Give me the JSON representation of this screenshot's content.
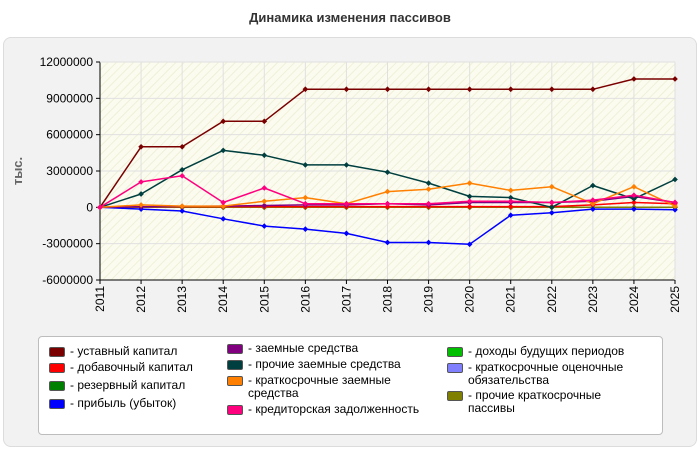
{
  "title": "Динамика изменения пассивов",
  "chart_data": {
    "type": "line",
    "ylabel": "тыс.",
    "ylim": [
      -6000000,
      12000000
    ],
    "yticks": [
      12000000,
      9000000,
      6000000,
      3000000,
      0,
      -3000000,
      -6000000
    ],
    "ytick_labels": [
      "12000000",
      "9000000",
      "6000000",
      "3000000",
      "0",
      "-3000000",
      "-6000000"
    ],
    "x": [
      "2011",
      "2012",
      "2013",
      "2014",
      "2015",
      "2016",
      "2017",
      "2018",
      "2019",
      "2020",
      "2021",
      "2022",
      "2023",
      "2024",
      "2025"
    ],
    "grid": true,
    "legend_position": "bottom",
    "series": [
      {
        "name": "уставный капитал",
        "color": "#7a0000",
        "values": [
          0,
          5000000,
          5000000,
          7100000,
          7100000,
          9750000,
          9750000,
          9750000,
          9750000,
          9750000,
          9750000,
          9750000,
          9750000,
          10600000,
          10600000
        ]
      },
      {
        "name": "добавочный капитал",
        "color": "#ff0000",
        "values": [
          0,
          50000,
          60000,
          60000,
          60000,
          60000,
          60000,
          60000,
          60000,
          60000,
          60000,
          60000,
          200000,
          400000,
          300000
        ]
      },
      {
        "name": "резервный капитал",
        "color": "#008000",
        "values": [
          0,
          0,
          0,
          0,
          0,
          0,
          0,
          0,
          0,
          0,
          0,
          0,
          0,
          0,
          0
        ]
      },
      {
        "name": "прибыль (убыток)",
        "color": "#0000ff",
        "values": [
          0,
          -150000,
          -300000,
          -950000,
          -1550000,
          -1800000,
          -2150000,
          -2900000,
          -2900000,
          -3050000,
          -650000,
          -450000,
          -150000,
          -150000,
          -200000
        ]
      },
      {
        "name": "заемные средства",
        "color": "#800080",
        "values": [
          0,
          50000,
          80000,
          100000,
          150000,
          200000,
          200000,
          300000,
          200000,
          400000,
          400000,
          400000,
          500000,
          900000,
          400000
        ]
      },
      {
        "name": "прочие заемные средства",
        "color": "#003f3f",
        "values": [
          0,
          1100000,
          3100000,
          4700000,
          4300000,
          3500000,
          3500000,
          2900000,
          2000000,
          900000,
          800000,
          0,
          1800000,
          700000,
          2300000
        ]
      },
      {
        "name": "краткосрочные заемные средства",
        "color": "#ff8000",
        "values": [
          0,
          200000,
          100000,
          100000,
          500000,
          800000,
          300000,
          1300000,
          1500000,
          2000000,
          1400000,
          1700000,
          300000,
          1700000,
          100000
        ]
      },
      {
        "name": "кредиторская задолженность",
        "color": "#ff007f",
        "values": [
          0,
          2100000,
          2600000,
          400000,
          1600000,
          300000,
          300000,
          300000,
          300000,
          500000,
          500000,
          400000,
          600000,
          1000000,
          400000
        ]
      },
      {
        "name": "доходы будущих периодов",
        "color": "#00c000",
        "values": [
          0,
          0,
          0,
          0,
          0,
          0,
          0,
          0,
          0,
          0,
          0,
          0,
          0,
          0,
          0
        ]
      },
      {
        "name": "краткосрочные оценочные обязательства",
        "color": "#8080ff",
        "values": [
          0,
          0,
          0,
          0,
          0,
          0,
          0,
          0,
          0,
          0,
          0,
          0,
          0,
          0,
          0
        ]
      },
      {
        "name": "прочие краткосрочные пассивы",
        "color": "#808000",
        "values": [
          0,
          0,
          0,
          0,
          0,
          0,
          0,
          0,
          0,
          0,
          0,
          0,
          0,
          0,
          0
        ]
      }
    ]
  }
}
